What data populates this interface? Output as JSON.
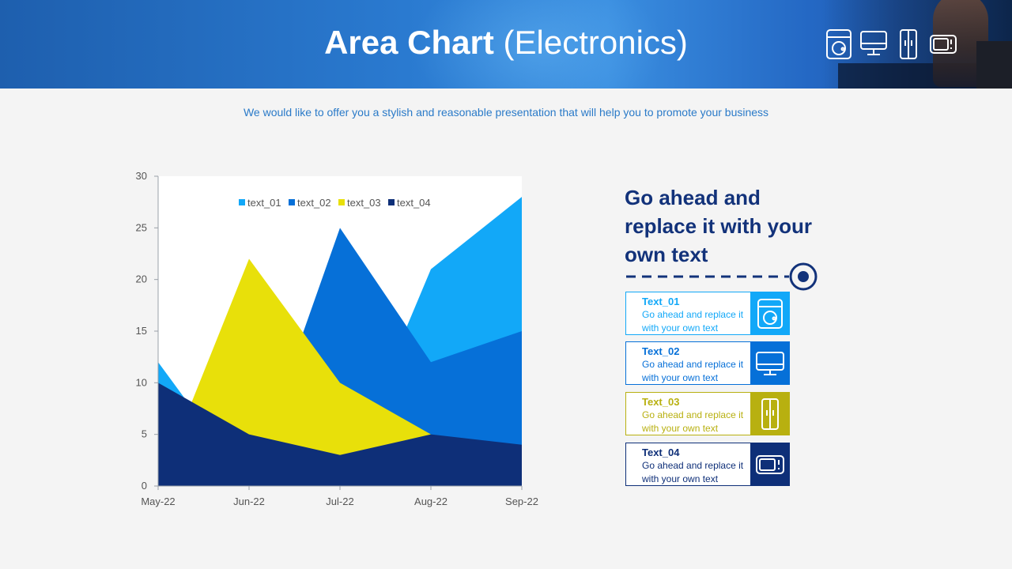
{
  "header": {
    "title_bold": "Area Chart",
    "title_light": "(Electronics)",
    "icons": [
      "washing-machine-icon",
      "monitor-icon",
      "refrigerator-icon",
      "microwave-icon"
    ]
  },
  "subtitle": "We would like to offer you a stylish and reasonable presentation that will help you to promote your business",
  "colors": {
    "text_01": "#12a8f8",
    "text_02": "#0670d8",
    "text_03": "#e8e00a",
    "text_04": "#0e2f78",
    "card_03_accent": "#b8b010",
    "heading": "#12327a"
  },
  "chart_data": {
    "type": "area",
    "categories": [
      "May-22",
      "Jun-22",
      "Jul-22",
      "Aug-22",
      "Sep-22"
    ],
    "ylim": [
      0,
      30
    ],
    "yticks": [
      0,
      5,
      10,
      15,
      20,
      25,
      30
    ],
    "legend_position": "top-center",
    "series": [
      {
        "name": "text_01",
        "values": [
          12,
          0,
          0,
          21,
          28
        ]
      },
      {
        "name": "text_02",
        "values": [
          0,
          0,
          25,
          12,
          15
        ]
      },
      {
        "name": "text_03",
        "values": [
          0,
          22,
          10,
          5,
          0
        ]
      },
      {
        "name": "text_04",
        "values": [
          10,
          5,
          3,
          5,
          4
        ]
      }
    ]
  },
  "right_panel": {
    "heading": "Go ahead and replace it with your own text",
    "cards": [
      {
        "label": "Text_01",
        "desc": "Go ahead and replace it with your own text",
        "icon": "washing-machine-icon"
      },
      {
        "label": "Text_02",
        "desc": "Go ahead and replace it with your own text",
        "icon": "monitor-icon"
      },
      {
        "label": "Text_03",
        "desc": "Go ahead and replace it with your own text",
        "icon": "refrigerator-icon"
      },
      {
        "label": "Text_04",
        "desc": "Go ahead and replace it with your own text",
        "icon": "microwave-icon"
      }
    ]
  }
}
